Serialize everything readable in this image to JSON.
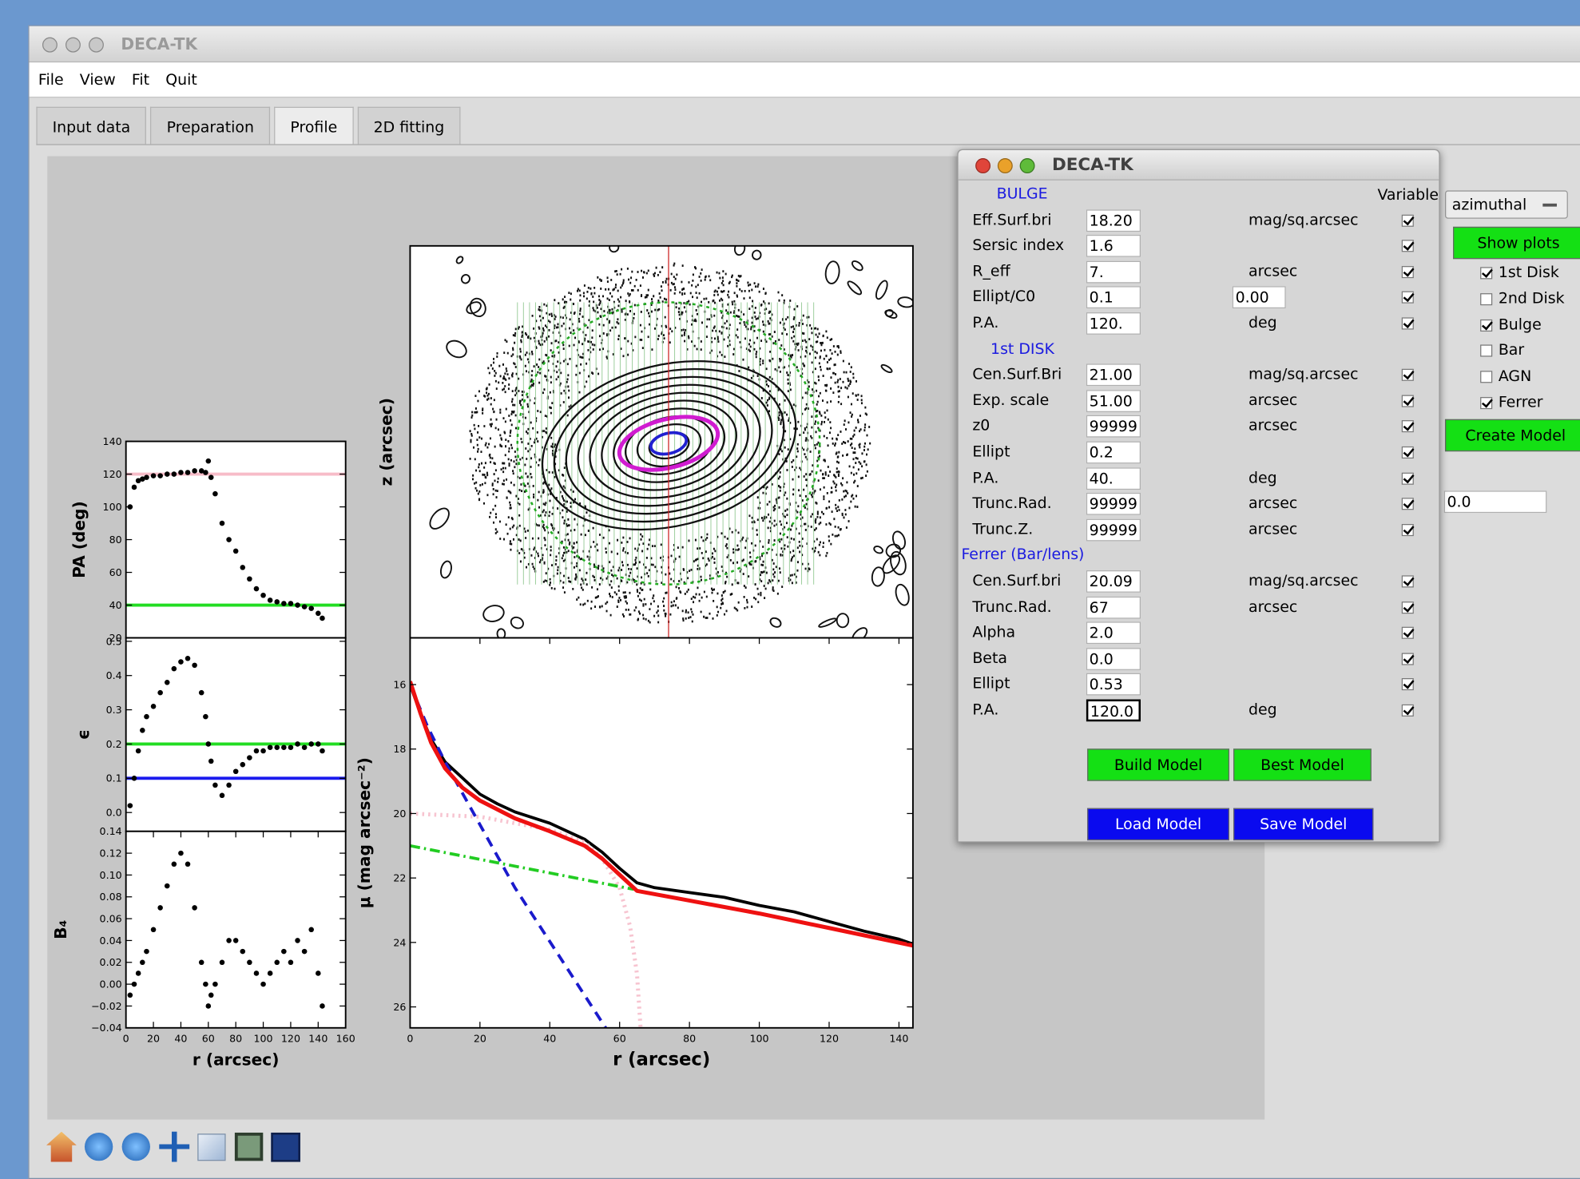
{
  "window_title": "DECA-TK",
  "menu": [
    "File",
    "View",
    "Fit",
    "Quit"
  ],
  "tabs": [
    "Input data",
    "Preparation",
    "Profile",
    "2D fitting"
  ],
  "active_tab": 2,
  "dialog": {
    "title": "DECA-TK",
    "variable_label": "Variable",
    "sections": [
      {
        "title": "BULGE",
        "rows": [
          {
            "label": "Eff.Surf.bri",
            "value": "18.20",
            "unit": "mag/sq.arcsec",
            "variable": true
          },
          {
            "label": "Sersic index",
            "value": "1.6",
            "variable": true
          },
          {
            "label": "R_eff",
            "value": "7.",
            "unit": "arcsec",
            "variable": true
          },
          {
            "label": "Ellipt/C0",
            "value": "0.1",
            "extra": "0.00",
            "variable": true
          },
          {
            "label": "P.A.",
            "value": "120.",
            "unit": "deg",
            "variable": true
          }
        ]
      },
      {
        "title": "1st DISK",
        "rows": [
          {
            "label": "Cen.Surf.Bri",
            "value": "21.00",
            "unit": "mag/sq.arcsec",
            "variable": true
          },
          {
            "label": "Exp. scale",
            "value": "51.00",
            "unit": "arcsec",
            "variable": true
          },
          {
            "label": "z0",
            "value": "99999",
            "unit": "arcsec",
            "variable": true
          },
          {
            "label": "Ellipt",
            "value": "0.2",
            "variable": true
          },
          {
            "label": "P.A.",
            "value": "40.",
            "unit": "deg",
            "variable": true
          },
          {
            "label": "Trunc.Rad.",
            "value": "99999",
            "unit": "arcsec",
            "variable": true
          },
          {
            "label": "Trunc.Z.",
            "value": "99999",
            "unit": "arcsec",
            "variable": true
          }
        ]
      },
      {
        "title": "Ferrer (Bar/lens)",
        "rows": [
          {
            "label": "Cen.Surf.bri",
            "value": "20.09",
            "unit": "mag/sq.arcsec",
            "variable": true
          },
          {
            "label": "Trunc.Rad.",
            "value": "67",
            "unit": "arcsec",
            "variable": true
          },
          {
            "label": "Alpha",
            "value": "2.0",
            "variable": true
          },
          {
            "label": "Beta",
            "value": "0.0",
            "variable": true
          },
          {
            "label": "Ellipt",
            "value": "0.53",
            "variable": true
          },
          {
            "label": "P.A.",
            "value": "120.0",
            "unit": "deg",
            "variable": true,
            "focused": true
          }
        ]
      }
    ],
    "buttons": [
      {
        "label": "Build Model",
        "color": "#14e014",
        "text_color": "#000000"
      },
      {
        "label": "Best Model",
        "color": "#14e014",
        "text_color": "#000000"
      },
      {
        "label": "Load Model",
        "color": "#0a0aef",
        "text_color": "#ffffff"
      },
      {
        "label": "Save Model",
        "color": "#0a0aef",
        "text_color": "#ffffff"
      }
    ]
  },
  "right_panel": {
    "mode": "azimuthal",
    "show_plots": "Show plots",
    "components": [
      {
        "label": "1st Disk",
        "checked": true
      },
      {
        "label": "2nd Disk",
        "checked": false
      },
      {
        "label": "Bulge",
        "checked": true
      },
      {
        "label": "Bar",
        "checked": false
      },
      {
        "label": "AGN",
        "checked": false
      },
      {
        "label": "Ferrer",
        "checked": true
      }
    ],
    "create_model": "Create Model",
    "value": "0.0"
  },
  "chart_data": [
    {
      "type": "scatter",
      "y_label": "PA (deg)",
      "xlim": [
        0,
        160
      ],
      "ylim": [
        20,
        140
      ],
      "yticks": [
        20,
        40,
        60,
        80,
        100,
        120,
        140
      ],
      "color": "#000000",
      "hlines": [
        {
          "value": 120,
          "color": "#f7bcc8"
        },
        {
          "value": 40,
          "color": "#22dd22"
        }
      ],
      "x": [
        3,
        6,
        9,
        12,
        15,
        20,
        25,
        30,
        35,
        40,
        45,
        50,
        55,
        58,
        60,
        62,
        65,
        70,
        75,
        80,
        85,
        90,
        95,
        100,
        105,
        110,
        115,
        120,
        125,
        130,
        135,
        140,
        143
      ],
      "values": [
        100,
        112,
        116,
        117,
        118,
        119,
        119,
        120,
        120,
        121,
        121,
        122,
        122,
        121,
        128,
        118,
        108,
        90,
        80,
        73,
        63,
        56,
        50,
        46,
        43,
        42,
        41,
        41,
        40,
        39,
        38,
        35,
        32
      ]
    },
    {
      "type": "scatter",
      "y_label": "ϵ",
      "xlim": [
        0,
        160
      ],
      "ylim": [
        -0.055,
        0.51
      ],
      "yticks": [
        {
          "value": 0,
          "label": "0.0"
        },
        0.1,
        0.2,
        0.3,
        0.4,
        0.5
      ],
      "color": "#000000",
      "hlines": [
        {
          "value": 0.2,
          "color": "#22dd22"
        },
        {
          "value": 0.1,
          "color": "#1a1aee"
        }
      ],
      "x": [
        3,
        6,
        9,
        12,
        15,
        20,
        25,
        30,
        35,
        40,
        45,
        50,
        55,
        58,
        60,
        62,
        65,
        70,
        75,
        80,
        85,
        90,
        95,
        100,
        105,
        110,
        115,
        120,
        125,
        130,
        135,
        140,
        143
      ],
      "values": [
        0.02,
        0.1,
        0.18,
        0.24,
        0.28,
        0.31,
        0.35,
        0.38,
        0.42,
        0.44,
        0.45,
        0.43,
        0.35,
        0.28,
        0.2,
        0.15,
        0.08,
        0.05,
        0.08,
        0.12,
        0.14,
        0.16,
        0.18,
        0.18,
        0.19,
        0.19,
        0.19,
        0.19,
        0.2,
        0.19,
        0.2,
        0.2,
        0.18
      ]
    },
    {
      "type": "scatter",
      "y_label": "B₄",
      "x_label": "r (arcsec)",
      "xlim": [
        0,
        160
      ],
      "ylim": [
        -0.04,
        0.14
      ],
      "xticks": [
        0,
        20,
        40,
        60,
        80,
        100,
        120,
        140,
        160
      ],
      "yticks": [
        {
          "value": -0.04,
          "label": "−0.04"
        },
        {
          "value": -0.02,
          "label": "−0.02"
        },
        {
          "value": 0,
          "label": "0.00"
        },
        0.02,
        0.04,
        0.06,
        0.08,
        {
          "value": 0.1,
          "label": "0.10"
        },
        0.12,
        0.14
      ],
      "color": "#000000",
      "x": [
        3,
        6,
        9,
        12,
        15,
        20,
        25,
        30,
        35,
        40,
        45,
        50,
        55,
        58,
        60,
        62,
        65,
        70,
        75,
        80,
        85,
        90,
        95,
        100,
        105,
        110,
        115,
        120,
        125,
        130,
        135,
        140,
        143
      ],
      "values": [
        -0.01,
        0,
        0.01,
        0.02,
        0.03,
        0.05,
        0.07,
        0.09,
        0.11,
        0.12,
        0.11,
        0.07,
        0.02,
        0,
        -0.02,
        -0.01,
        0,
        0.02,
        0.04,
        0.04,
        0.03,
        0.02,
        0.01,
        0,
        0.01,
        0.02,
        0.03,
        0.02,
        0.04,
        0.03,
        0.05,
        0.01,
        -0.02
      ]
    },
    {
      "type": "image",
      "y_label": "z (arcsec)"
    },
    {
      "type": "line",
      "x_label": "r (arcsec)",
      "y_label": "μ (mag arcsec⁻²)",
      "xlim": [
        0,
        144
      ],
      "ylim": [
        14.55,
        26.65
      ],
      "invert_y": true,
      "xticks": [
        0,
        20,
        40,
        60,
        80,
        100,
        120,
        140
      ],
      "yticks": [
        16,
        18,
        20,
        22,
        24,
        26
      ],
      "series": [
        {
          "color": "#000000",
          "style": "solid",
          "width": 3,
          "x": [
            0,
            3,
            6,
            10,
            15,
            20,
            25,
            30,
            40,
            50,
            55,
            60,
            65,
            70,
            80,
            90,
            100,
            110,
            120,
            130,
            140,
            144
          ],
          "values": [
            16,
            16.9,
            17.7,
            18.4,
            18.9,
            19.4,
            19.7,
            19.95,
            20.3,
            20.8,
            21.2,
            21.7,
            22.15,
            22.3,
            22.45,
            22.6,
            22.85,
            23.05,
            23.35,
            23.65,
            23.9,
            24.05
          ]
        },
        {
          "color": "#f7c4d0",
          "style": "dotted",
          "width": 4,
          "x": [
            0,
            20,
            40,
            50,
            55,
            60,
            63,
            65,
            66
          ],
          "values": [
            20.0,
            20.1,
            20.5,
            20.9,
            21.4,
            22.3,
            23.5,
            25.0,
            26.65
          ]
        },
        {
          "color": "#1a1acc",
          "style": "dashed",
          "width": 3,
          "x": [
            0,
            5,
            10,
            30,
            56
          ],
          "values": [
            16,
            17.3,
            18.4,
            22.3,
            26.65
          ]
        },
        {
          "color": "#22cc22",
          "style": "dashdot",
          "width": 3,
          "x": [
            0,
            64
          ],
          "values": [
            21.0,
            22.35
          ]
        },
        {
          "color": "#ee1111",
          "style": "solid",
          "width": 4,
          "x": [
            0,
            3,
            6,
            10,
            15,
            20,
            30,
            40,
            50,
            55,
            60,
            65,
            80,
            100,
            120,
            144
          ],
          "values": [
            15.9,
            16.9,
            17.8,
            18.6,
            19.2,
            19.6,
            20.15,
            20.55,
            21.0,
            21.4,
            21.9,
            22.4,
            22.7,
            23.1,
            23.55,
            24.1
          ]
        }
      ]
    }
  ]
}
